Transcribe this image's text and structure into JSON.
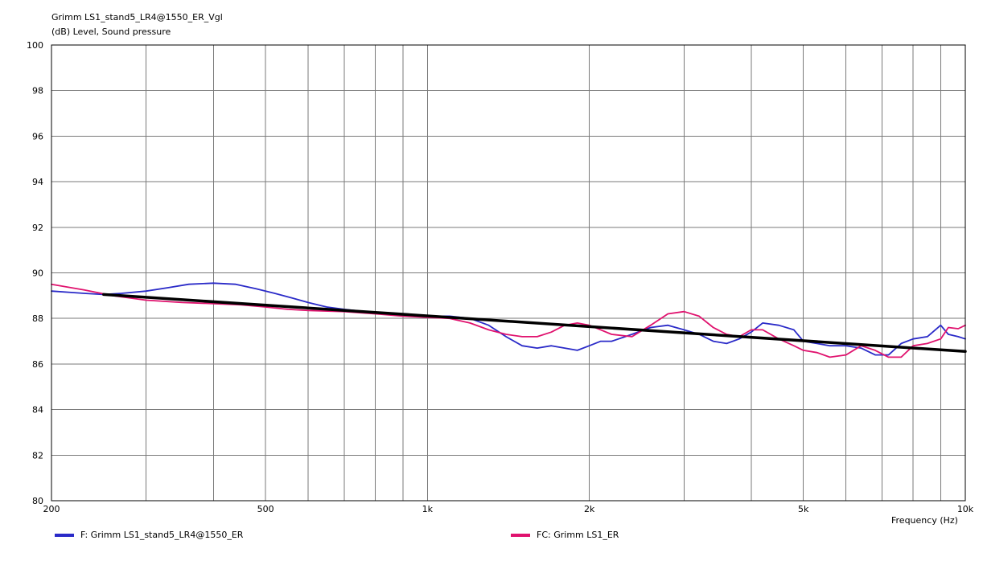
{
  "chart_data": {
    "type": "line",
    "title": "Grimm LS1_stand5_LR4@1550_ER_Vgl",
    "ylabel": "(dB)  Level, Sound pressure",
    "xlabel": "Frequency  (Hz)",
    "x_scale": "log",
    "xlim": [
      200,
      10000
    ],
    "ylim": [
      80,
      100
    ],
    "grid": true,
    "legend_position": "bottom",
    "x_ticks": [
      {
        "value": 200,
        "label": "200"
      },
      {
        "value": 500,
        "label": "500"
      },
      {
        "value": 1000,
        "label": "1k"
      },
      {
        "value": 2000,
        "label": "2k"
      },
      {
        "value": 5000,
        "label": "5k"
      },
      {
        "value": 10000,
        "label": "10k"
      }
    ],
    "x_minor_grid": [
      300,
      400,
      600,
      700,
      800,
      900,
      3000,
      4000,
      6000,
      7000,
      8000,
      9000
    ],
    "y_ticks": [
      {
        "value": 80,
        "label": "80"
      },
      {
        "value": 82,
        "label": "82"
      },
      {
        "value": 84,
        "label": "84"
      },
      {
        "value": 86,
        "label": "86"
      },
      {
        "value": 88,
        "label": "88"
      },
      {
        "value": 90,
        "label": "90"
      },
      {
        "value": 92,
        "label": "92"
      },
      {
        "value": 94,
        "label": "94"
      },
      {
        "value": 96,
        "label": "96"
      },
      {
        "value": 98,
        "label": "98"
      },
      {
        "value": 100,
        "label": "100"
      }
    ],
    "series": [
      {
        "name": "F: Grimm LS1_stand5_LR4@1550_ER",
        "color": "#2a2ac8",
        "points": [
          [
            200,
            89.2
          ],
          [
            215,
            89.15
          ],
          [
            230,
            89.1
          ],
          [
            250,
            89.05
          ],
          [
            270,
            89.1
          ],
          [
            300,
            89.2
          ],
          [
            330,
            89.35
          ],
          [
            360,
            89.5
          ],
          [
            400,
            89.55
          ],
          [
            440,
            89.5
          ],
          [
            480,
            89.3
          ],
          [
            520,
            89.1
          ],
          [
            560,
            88.9
          ],
          [
            600,
            88.7
          ],
          [
            650,
            88.5
          ],
          [
            700,
            88.4
          ],
          [
            800,
            88.25
          ],
          [
            900,
            88.15
          ],
          [
            1000,
            88.1
          ],
          [
            1100,
            88.1
          ],
          [
            1200,
            88.0
          ],
          [
            1300,
            87.7
          ],
          [
            1400,
            87.2
          ],
          [
            1500,
            86.8
          ],
          [
            1600,
            86.7
          ],
          [
            1700,
            86.8
          ],
          [
            1800,
            86.7
          ],
          [
            1900,
            86.6
          ],
          [
            2000,
            86.8
          ],
          [
            2100,
            87.0
          ],
          [
            2200,
            87.0
          ],
          [
            2400,
            87.3
          ],
          [
            2600,
            87.6
          ],
          [
            2800,
            87.7
          ],
          [
            3000,
            87.5
          ],
          [
            3200,
            87.3
          ],
          [
            3400,
            87.0
          ],
          [
            3600,
            86.9
          ],
          [
            3800,
            87.1
          ],
          [
            4000,
            87.4
          ],
          [
            4200,
            87.8
          ],
          [
            4500,
            87.7
          ],
          [
            4800,
            87.5
          ],
          [
            5000,
            87.0
          ],
          [
            5300,
            86.9
          ],
          [
            5600,
            86.8
          ],
          [
            6000,
            86.8
          ],
          [
            6400,
            86.7
          ],
          [
            6800,
            86.4
          ],
          [
            7200,
            86.4
          ],
          [
            7600,
            86.9
          ],
          [
            8000,
            87.1
          ],
          [
            8500,
            87.2
          ],
          [
            9000,
            87.7
          ],
          [
            9300,
            87.3
          ],
          [
            9700,
            87.2
          ],
          [
            10000,
            87.1
          ]
        ]
      },
      {
        "name": "FC: Grimm LS1_ER",
        "color": "#e0126e",
        "points": [
          [
            200,
            89.5
          ],
          [
            230,
            89.25
          ],
          [
            260,
            89.0
          ],
          [
            300,
            88.8
          ],
          [
            350,
            88.7
          ],
          [
            400,
            88.65
          ],
          [
            450,
            88.6
          ],
          [
            500,
            88.5
          ],
          [
            550,
            88.4
          ],
          [
            600,
            88.35
          ],
          [
            700,
            88.3
          ],
          [
            800,
            88.2
          ],
          [
            900,
            88.1
          ],
          [
            1000,
            88.05
          ],
          [
            1100,
            88.0
          ],
          [
            1200,
            87.8
          ],
          [
            1300,
            87.5
          ],
          [
            1400,
            87.3
          ],
          [
            1500,
            87.2
          ],
          [
            1600,
            87.2
          ],
          [
            1700,
            87.4
          ],
          [
            1800,
            87.7
          ],
          [
            1900,
            87.8
          ],
          [
            2000,
            87.7
          ],
          [
            2100,
            87.5
          ],
          [
            2200,
            87.3
          ],
          [
            2400,
            87.2
          ],
          [
            2600,
            87.7
          ],
          [
            2800,
            88.2
          ],
          [
            3000,
            88.3
          ],
          [
            3200,
            88.1
          ],
          [
            3400,
            87.6
          ],
          [
            3600,
            87.3
          ],
          [
            3800,
            87.2
          ],
          [
            4000,
            87.5
          ],
          [
            4200,
            87.5
          ],
          [
            4500,
            87.1
          ],
          [
            4800,
            86.8
          ],
          [
            5000,
            86.6
          ],
          [
            5300,
            86.5
          ],
          [
            5600,
            86.3
          ],
          [
            6000,
            86.4
          ],
          [
            6400,
            86.8
          ],
          [
            6800,
            86.6
          ],
          [
            7200,
            86.3
          ],
          [
            7600,
            86.3
          ],
          [
            8000,
            86.8
          ],
          [
            8500,
            86.9
          ],
          [
            9000,
            87.1
          ],
          [
            9300,
            87.6
          ],
          [
            9700,
            87.55
          ],
          [
            10000,
            87.7
          ]
        ]
      },
      {
        "color": "#000000",
        "points": [
          [
            250,
            89.05
          ],
          [
            10000,
            86.55
          ]
        ]
      }
    ]
  }
}
